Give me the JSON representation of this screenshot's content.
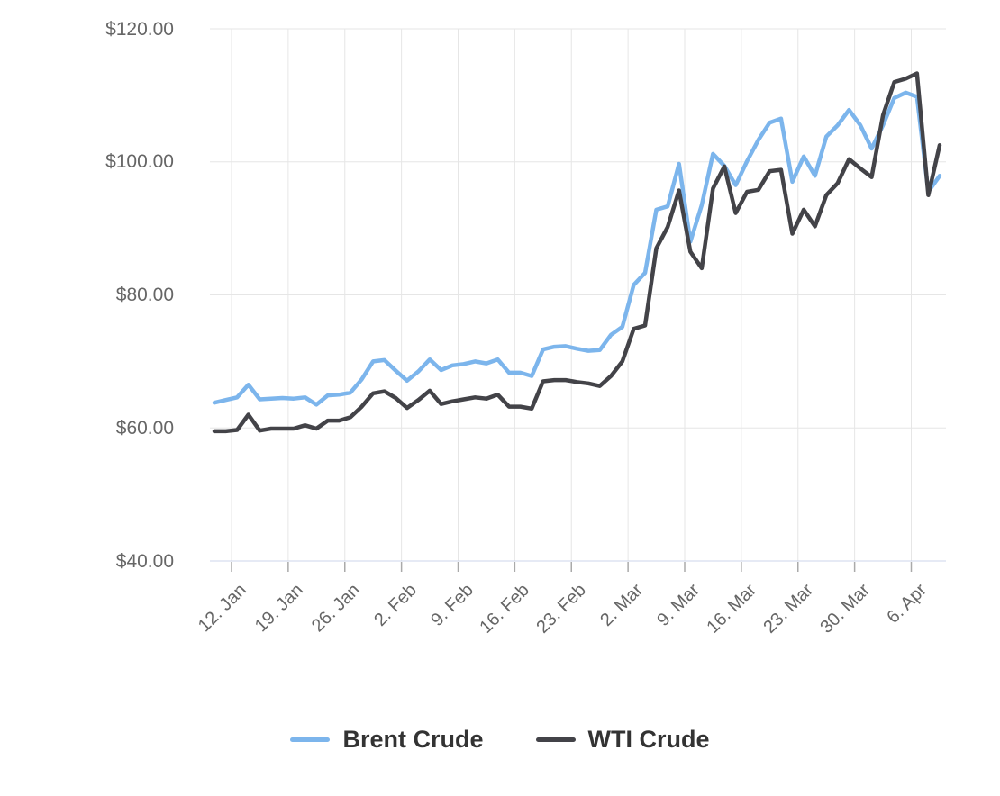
{
  "chart_data": {
    "type": "line",
    "title": "",
    "xlabel": "",
    "ylabel": "",
    "x_tick_labels": [
      "12. Jan",
      "19. Jan",
      "26. Jan",
      "2. Feb",
      "9. Feb",
      "16. Feb",
      "23. Feb",
      "2. Mar",
      "9. Mar",
      "16. Mar",
      "23. Mar",
      "30. Mar",
      "6. Apr"
    ],
    "y_tick_labels": [
      "$40.00",
      "$60.00",
      "$80.00",
      "$100.00",
      "$120.00"
    ],
    "y_axis": {
      "min": 40,
      "max": 120,
      "tick_interval": 20,
      "prefix": "$"
    },
    "grid": true,
    "legend_position": "bottom",
    "series": [
      {
        "name": "Brent Crude",
        "color": "#7cb5ec",
        "values": [
          63.8,
          64.2,
          64.6,
          66.5,
          64.3,
          64.4,
          64.5,
          64.4,
          64.6,
          63.5,
          64.9,
          65.0,
          65.3,
          67.3,
          70.0,
          70.2,
          68.6,
          67.1,
          68.5,
          70.3,
          68.7,
          69.4,
          69.6,
          70.0,
          69.7,
          70.3,
          68.3,
          68.3,
          67.8,
          71.8,
          72.2,
          72.3,
          71.9,
          71.6,
          71.7,
          74.0,
          75.2,
          81.5,
          83.3,
          92.8,
          93.3,
          99.7,
          88.0,
          93.5,
          101.2,
          99.4,
          96.5,
          100.1,
          103.3,
          105.9,
          106.5,
          97.0,
          100.8,
          97.9,
          103.8,
          105.5,
          107.8,
          105.5,
          102.0,
          105.5,
          109.6,
          110.4,
          109.8,
          95.5,
          97.9
        ]
      },
      {
        "name": "WTI Crude",
        "color": "#434348",
        "values": [
          59.5,
          59.5,
          59.7,
          62.0,
          59.6,
          59.9,
          59.9,
          59.9,
          60.4,
          59.9,
          61.1,
          61.1,
          61.6,
          63.2,
          65.2,
          65.5,
          64.5,
          63.0,
          64.2,
          65.6,
          63.6,
          64.0,
          64.3,
          64.6,
          64.4,
          65.0,
          63.2,
          63.2,
          62.9,
          67.0,
          67.2,
          67.2,
          66.9,
          66.7,
          66.3,
          67.8,
          70.0,
          74.9,
          75.4,
          87.0,
          90.2,
          95.7,
          86.5,
          84.0,
          96.0,
          99.3,
          92.3,
          95.5,
          95.8,
          98.6,
          98.8,
          89.2,
          92.8,
          90.3,
          95.0,
          96.8,
          100.4,
          99.0,
          97.7,
          107.0,
          112.0,
          112.5,
          113.3,
          95.0,
          102.5
        ]
      }
    ]
  },
  "style": {
    "grid_color": "#e6e6e6",
    "axis_line_color": "#ccd6eb",
    "tick_color": "#aaaaaa",
    "label_color": "#666666",
    "legend_text_color": "#333333",
    "background": "#ffffff"
  }
}
